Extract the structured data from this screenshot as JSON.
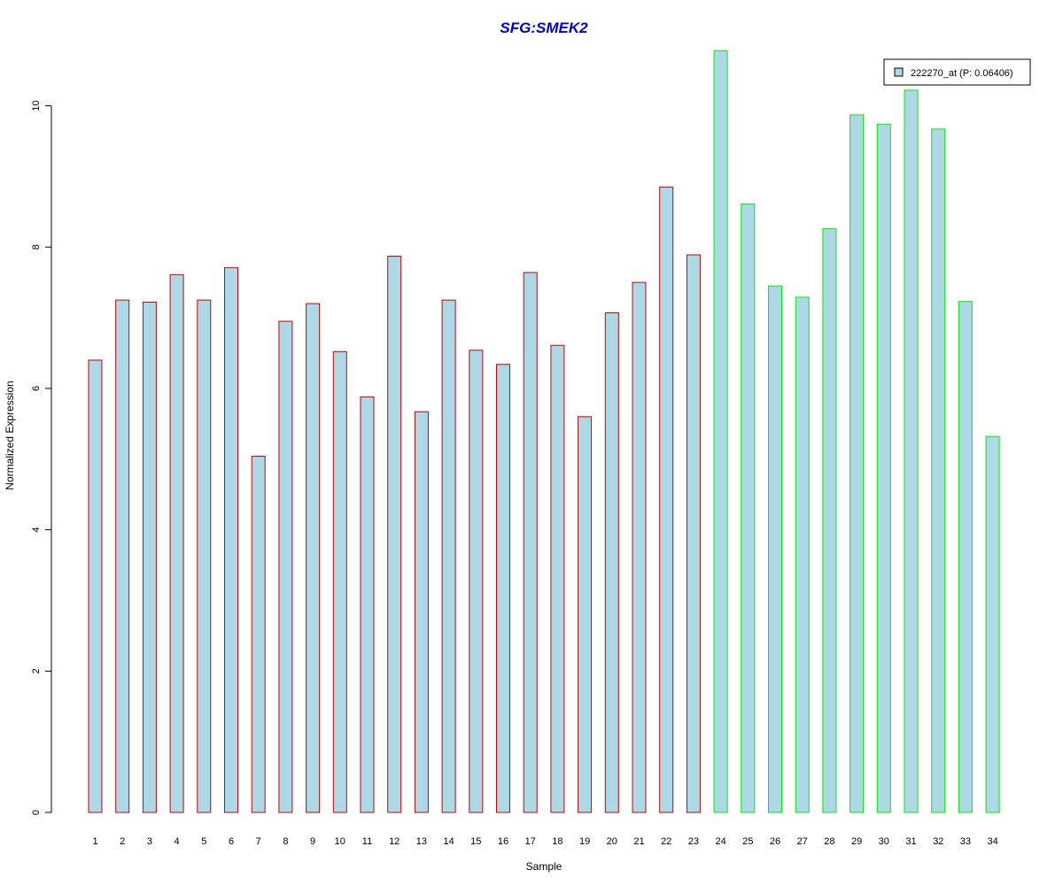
{
  "chart_data": {
    "type": "bar",
    "title": "SFG:SMEK2",
    "xlabel": "Sample",
    "ylabel": "Normalized Expression",
    "categories": [
      "1",
      "2",
      "3",
      "4",
      "5",
      "6",
      "7",
      "8",
      "9",
      "10",
      "11",
      "12",
      "13",
      "14",
      "15",
      "16",
      "17",
      "18",
      "19",
      "20",
      "21",
      "22",
      "23",
      "24",
      "25",
      "26",
      "27",
      "28",
      "29",
      "30",
      "31",
      "32",
      "33",
      "34"
    ],
    "series": [
      {
        "name": "222270_at (P: 0.06406)",
        "values": [
          6.4,
          7.25,
          7.22,
          7.61,
          7.25,
          7.71,
          5.04,
          6.95,
          7.2,
          6.52,
          5.88,
          7.87,
          5.67,
          7.25,
          6.54,
          6.34,
          7.64,
          6.61,
          5.6,
          7.07,
          7.5,
          8.85,
          7.89,
          10.78,
          8.61,
          7.45,
          7.29,
          8.26,
          9.87,
          9.74,
          10.22,
          9.67,
          7.23,
          5.32
        ]
      }
    ],
    "group_of_bar": [
      "a",
      "a",
      "a",
      "a",
      "a",
      "a",
      "a",
      "a",
      "a",
      "a",
      "a",
      "a",
      "a",
      "a",
      "a",
      "a",
      "a",
      "a",
      "a",
      "a",
      "a",
      "a",
      "a",
      "b",
      "b",
      "b",
      "b",
      "b",
      "b",
      "b",
      "b",
      "b",
      "b",
      "b"
    ],
    "yticks": [
      "0",
      "2",
      "4",
      "6",
      "8",
      "10"
    ],
    "ylim": [
      0,
      10.8
    ],
    "legend_position": "top-right",
    "grid": false,
    "colors": {
      "fill": "#add8e6",
      "border_group_a": "#cc0000",
      "border_group_b": "#00ee00",
      "title": "#0000cc",
      "axis": "#000000"
    }
  }
}
